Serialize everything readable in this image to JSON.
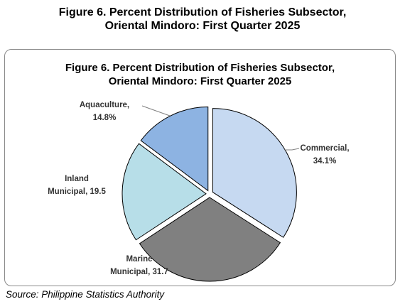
{
  "figure_title": {
    "line1": "Figure 6. Percent Distribution of Fisheries Subsector,",
    "line2": "Oriental Mindoro: First Quarter 2025"
  },
  "source": "Source: Philippine Statistics Authority",
  "chart_data": {
    "type": "pie",
    "title": "Figure 6. Percent Distribution of Fisheries Subsector, Oriental Mindoro: First Quarter 2025",
    "title_lines": [
      "Figure 6. Percent Distribution of Fisheries Subsector,",
      "Oriental Mindoro: First Quarter 2025"
    ],
    "slices": [
      {
        "name": "Commercial",
        "value": 34.1,
        "label_lines": [
          "Commercial,",
          "34.1%"
        ],
        "color": "#c6d9f1",
        "leader": true
      },
      {
        "name": "Marine Municipal",
        "value": 31.7,
        "label_lines": [
          "Marine",
          "Municipal, 31.7"
        ],
        "color": "#808080",
        "leader": false
      },
      {
        "name": "Inland Municipal",
        "value": 19.5,
        "label_lines": [
          "Inland",
          "Municipal, 19.5"
        ],
        "color": "#b7dee8",
        "leader": false
      },
      {
        "name": "Aquaculture",
        "value": 14.8,
        "label_lines": [
          "Aquaculture,",
          "14.8%"
        ],
        "color": "#8db3e2",
        "leader": true
      }
    ],
    "start_angle_deg": 0,
    "direction": "clockwise",
    "exploded": true,
    "legend": "none"
  }
}
